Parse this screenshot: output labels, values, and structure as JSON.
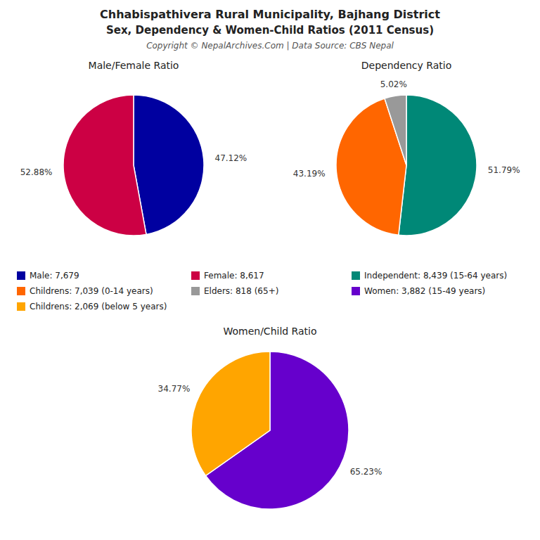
{
  "title": "Chhabispathivera Rural Municipality, Bajhang District",
  "subtitle": "Sex, Dependency & Women-Child Ratios (2011 Census)",
  "annotations": [
    "Copyright © NepalArchives.Com | Data Source: CBS Nepal"
  ],
  "chart_data": [
    {
      "type": "pie",
      "title": "Male/Female Ratio",
      "categories": [
        "Male: 7,679",
        "Female: 8,617"
      ],
      "values": [
        47.12,
        52.88
      ],
      "value_labels": [
        "47.12%",
        "52.88%"
      ],
      "colors": [
        "#0000A0",
        "#CC0044"
      ],
      "data_labels": true
    },
    {
      "type": "pie",
      "title": "Dependency Ratio",
      "categories": [
        "Independent: 8,439 (15-64 years)",
        "Childrens: 7,039 (0-14 years)",
        "Elders: 818 (65+)"
      ],
      "values": [
        51.79,
        43.19,
        5.02
      ],
      "value_labels": [
        "51.79%",
        "43.19%",
        "5.02%"
      ],
      "colors": [
        "#008877",
        "#FF6600",
        "#999999"
      ],
      "data_labels": true
    },
    {
      "type": "pie",
      "title": "Women/Child Ratio",
      "categories": [
        "Women: 3,882 (15-49 years)",
        "Childrens: 2,069 (below 5 years)"
      ],
      "values": [
        65.23,
        34.77
      ],
      "value_labels": [
        "65.23%",
        "34.77%"
      ],
      "colors": [
        "#6600CC",
        "#FFA500"
      ],
      "data_labels": true
    }
  ]
}
